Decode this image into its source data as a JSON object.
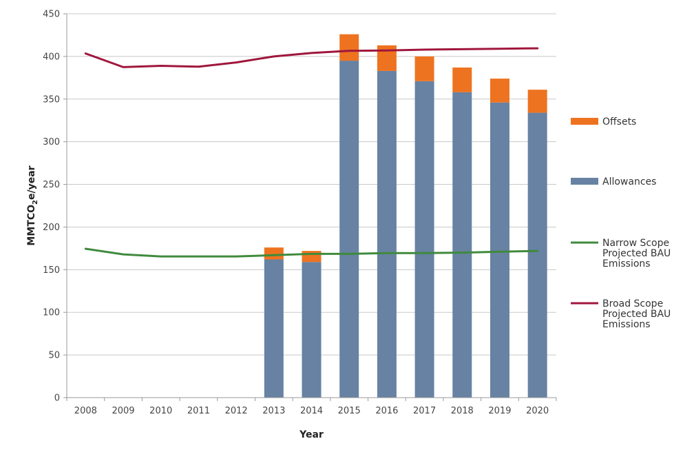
{
  "chart_data": {
    "type": "bar",
    "stacked": true,
    "title": "",
    "xlabel": "Year",
    "ylabel": "MMTCO2e/year",
    "ylabel_parts": {
      "pre": "MMTCO",
      "sub": "2",
      "post": "e/year"
    },
    "ylim": [
      0,
      450
    ],
    "yticks": [
      0,
      50,
      100,
      150,
      200,
      250,
      300,
      350,
      400,
      450
    ],
    "grid": true,
    "legend_position": "right",
    "categories": [
      "2008",
      "2009",
      "2010",
      "2011",
      "2012",
      "2013",
      "2014",
      "2015",
      "2016",
      "2017",
      "2018",
      "2019",
      "2020"
    ],
    "series": [
      {
        "name": "Allowances",
        "kind": "bar",
        "color": "#6782a3",
        "values": [
          0,
          0,
          0,
          0,
          0,
          162,
          159,
          395,
          383,
          371,
          358,
          346,
          334
        ]
      },
      {
        "name": "Offsets",
        "kind": "bar",
        "color": "#ee7320",
        "values": [
          0,
          0,
          0,
          0,
          0,
          14,
          13,
          31,
          30,
          29,
          29,
          28,
          27
        ]
      },
      {
        "name": "Narrow Scope\nProjected BAU\nEmissions",
        "kind": "line",
        "color": "#3f8a3c",
        "values": [
          174.5,
          168,
          165.5,
          165.5,
          165.5,
          167,
          168.5,
          168.5,
          169.5,
          169.5,
          170,
          171,
          172
        ]
      },
      {
        "name": "Broad Scope\nProjected BAU\nEmissions",
        "kind": "line",
        "color": "#a0163c",
        "values": [
          403.5,
          387.5,
          389,
          388,
          393,
          400,
          404,
          406.5,
          407,
          408,
          408.5,
          409,
          409.5
        ]
      }
    ],
    "legend": [
      {
        "series": 1,
        "lines": [
          "Offsets"
        ]
      },
      {
        "series": 0,
        "lines": [
          "Allowances"
        ]
      },
      {
        "series": 2,
        "lines": [
          "Narrow Scope",
          "Projected BAU",
          "Emissions"
        ]
      },
      {
        "series": 3,
        "lines": [
          "Broad Scope",
          "Projected BAU",
          "Emissions"
        ]
      }
    ]
  }
}
